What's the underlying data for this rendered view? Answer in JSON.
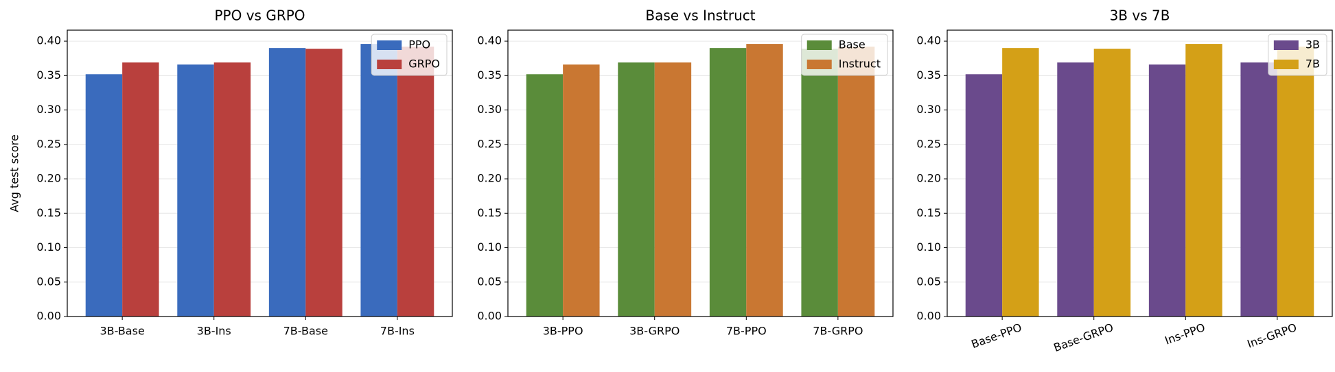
{
  "chart_data": [
    {
      "type": "bar",
      "title": "PPO vs GRPO",
      "ylabel": "Avg test score",
      "categories": [
        "3B-Base",
        "3B-Ins",
        "7B-Base",
        "7B-Ins"
      ],
      "series": [
        {
          "name": "PPO",
          "color": "#3a6bbd",
          "values": [
            0.352,
            0.366,
            0.39,
            0.396
          ]
        },
        {
          "name": "GRPO",
          "color": "#b9403d",
          "values": [
            0.369,
            0.369,
            0.389,
            0.392
          ]
        }
      ],
      "ylim": [
        0,
        0.416
      ],
      "yticks": [
        {
          "value": 0,
          "label": "0.00"
        },
        0.05,
        {
          "value": 0.1,
          "label": "0.10"
        },
        0.15,
        {
          "value": 0.2,
          "label": "0.20"
        },
        0.25,
        {
          "value": 0.3,
          "label": "0.30"
        },
        0.35,
        {
          "value": 0.4,
          "label": "0.40"
        }
      ],
      "grid": true,
      "legend": "upper-right"
    },
    {
      "type": "bar",
      "title": "Base vs Instruct",
      "categories": [
        "3B-PPO",
        "3B-GRPO",
        "7B-PPO",
        "7B-GRPO"
      ],
      "series": [
        {
          "name": "Base",
          "color": "#5a8c3a",
          "values": [
            0.352,
            0.369,
            0.39,
            0.389
          ]
        },
        {
          "name": "Instruct",
          "color": "#c97732",
          "values": [
            0.366,
            0.369,
            0.396,
            0.392
          ]
        }
      ],
      "ylim": [
        0,
        0.416
      ],
      "yticks": [
        {
          "value": 0,
          "label": "0.00"
        },
        0.05,
        {
          "value": 0.1,
          "label": "0.10"
        },
        0.15,
        {
          "value": 0.2,
          "label": "0.20"
        },
        0.25,
        {
          "value": 0.3,
          "label": "0.30"
        },
        0.35,
        {
          "value": 0.4,
          "label": "0.40"
        }
      ],
      "grid": true,
      "legend": "upper-right"
    },
    {
      "type": "bar",
      "title": "3B vs 7B",
      "categories": [
        "Base-PPO",
        "Base-GRPO",
        "Ins-PPO",
        "Ins-GRPO"
      ],
      "series": [
        {
          "name": "3B",
          "color": "#6a4a8c",
          "values": [
            0.352,
            0.369,
            0.366,
            0.369
          ]
        },
        {
          "name": "7B",
          "color": "#d4a017",
          "values": [
            0.39,
            0.389,
            0.396,
            0.392
          ]
        }
      ],
      "ylim": [
        0,
        0.416
      ],
      "yticks": [
        {
          "value": 0,
          "label": "0.00"
        },
        0.05,
        {
          "value": 0.1,
          "label": "0.10"
        },
        0.15,
        {
          "value": 0.2,
          "label": "0.20"
        },
        0.25,
        {
          "value": 0.3,
          "label": "0.30"
        },
        0.35,
        {
          "value": 0.4,
          "label": "0.40"
        }
      ],
      "grid": true,
      "legend": "upper-right",
      "xtick_rotation": 20
    }
  ]
}
